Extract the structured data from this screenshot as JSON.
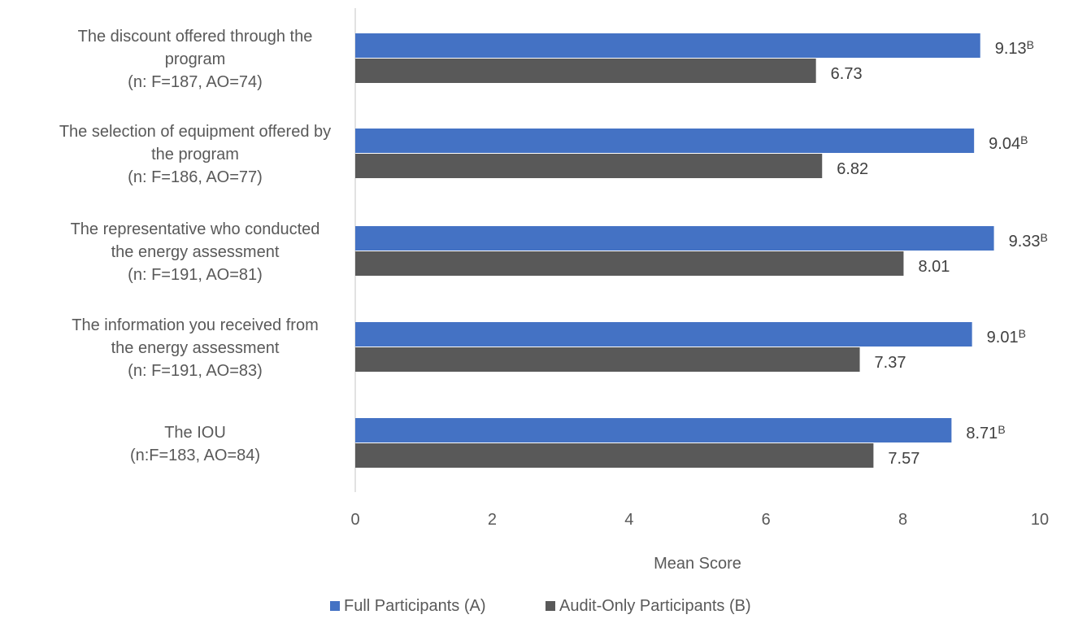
{
  "chart_data": {
    "type": "bar",
    "orientation": "horizontal",
    "categories": [
      [
        "The discount offered through the",
        "program",
        "(n: F=187, AO=74)"
      ],
      [
        "The selection of equipment offered by",
        "the program",
        "(n: F=186, AO=77)"
      ],
      [
        "The representative who conducted",
        "the energy assessment",
        "(n: F=191, AO=81)"
      ],
      [
        "The information you received from",
        "the energy assessment",
        "(n: F=191, AO=83)"
      ],
      [
        "The IOU",
        "(n:F=183, AO=84)"
      ]
    ],
    "series": [
      {
        "name": "Full Participants (A)",
        "color": "#4472C4",
        "values": [
          9.13,
          9.04,
          9.33,
          9.01,
          8.71
        ],
        "labels": [
          "9.13",
          "9.04",
          "9.33",
          "9.01",
          "8.71"
        ],
        "label_superscripts": [
          "B",
          "B",
          "B",
          "B",
          "B"
        ]
      },
      {
        "name": "Audit-Only Participants (B)",
        "color": "#595959",
        "values": [
          6.73,
          6.82,
          8.01,
          7.37,
          7.57
        ],
        "labels": [
          "6.73",
          "6.82",
          "8.01",
          "7.37",
          "7.57"
        ],
        "label_superscripts": [
          "",
          "",
          "",
          "",
          ""
        ]
      }
    ],
    "xlabel": "Mean Score",
    "xlim": [
      0,
      10
    ],
    "xticks": [
      "0",
      "2",
      "4",
      "6",
      "8",
      "10"
    ],
    "grid": false,
    "legend_position": "bottom"
  }
}
